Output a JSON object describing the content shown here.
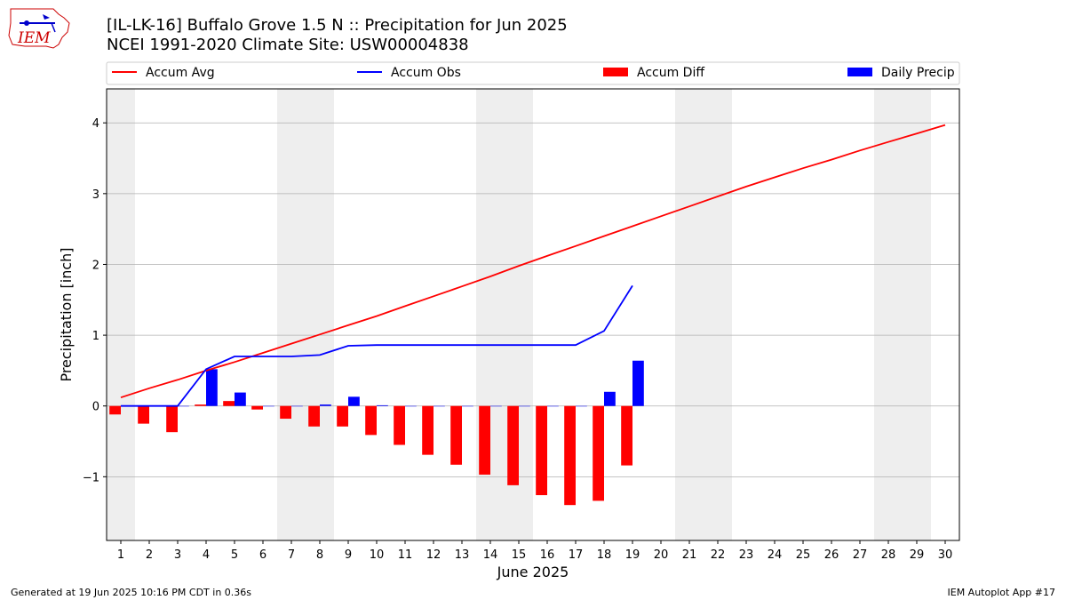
{
  "header": {
    "title_line1": "[IL-LK-16] Buffalo Grove 1.5 N :: Precipitation for Jun 2025",
    "title_line2": "NCEI 1991-2020 Climate Site: USW00004838"
  },
  "logo": {
    "text": "IEM"
  },
  "footer": {
    "generated": "Generated at 19 Jun 2025 10:16 PM CDT in 0.36s",
    "app": "IEM Autoplot App #17"
  },
  "colors": {
    "accum_avg": "#ff0000",
    "accum_obs": "#0000ff",
    "accum_diff": "#ff0000",
    "daily_precip": "#0000ff",
    "weekend_shade": "#eeeeee",
    "grid": "#b0b0b0"
  },
  "chart_data": {
    "type": "bar",
    "xlabel": "June 2025",
    "ylabel": "Precipitation [inch]",
    "xlim": [
      0.5,
      30.5
    ],
    "ylim": [
      -1.9,
      4.48
    ],
    "yticks": [
      -1,
      0,
      1,
      2,
      3,
      4
    ],
    "ytick_labels": [
      "−1",
      "0",
      "1",
      "2",
      "3",
      "4"
    ],
    "days": [
      1,
      2,
      3,
      4,
      5,
      6,
      7,
      8,
      9,
      10,
      11,
      12,
      13,
      14,
      15,
      16,
      17,
      18,
      19,
      20,
      21,
      22,
      23,
      24,
      25,
      26,
      27,
      28,
      29,
      30
    ],
    "weekend_ranges": [
      [
        0.5,
        1.5
      ],
      [
        6.5,
        8.5
      ],
      [
        13.5,
        15.5
      ],
      [
        20.5,
        22.5
      ],
      [
        27.5,
        29.5
      ]
    ],
    "grid": true,
    "legend_position": "top",
    "legend": [
      "Accum Avg",
      "Accum Obs",
      "Accum Diff",
      "Daily Precip"
    ],
    "series": [
      {
        "name": "Accum Avg",
        "kind": "line",
        "values": [
          0.12,
          0.25,
          0.37,
          0.5,
          0.62,
          0.75,
          0.88,
          1.01,
          1.14,
          1.27,
          1.41,
          1.55,
          1.69,
          1.83,
          1.98,
          2.12,
          2.26,
          2.4,
          2.54,
          2.68,
          2.82,
          2.96,
          3.1,
          3.23,
          3.36,
          3.48,
          3.61,
          3.73,
          3.85,
          3.97
        ]
      },
      {
        "name": "Accum Obs",
        "kind": "line",
        "values": [
          0.0,
          0.0,
          0.0,
          0.52,
          0.7,
          0.7,
          0.7,
          0.72,
          0.85,
          0.86,
          0.86,
          0.86,
          0.86,
          0.86,
          0.86,
          0.86,
          0.86,
          1.06,
          1.7
        ]
      },
      {
        "name": "Accum Diff",
        "kind": "bar",
        "values": [
          -0.12,
          -0.25,
          -0.37,
          0.02,
          0.07,
          -0.05,
          -0.18,
          -0.29,
          -0.29,
          -0.41,
          -0.55,
          -0.69,
          -0.83,
          -0.97,
          -1.12,
          -1.26,
          -1.4,
          -1.34,
          -0.84
        ]
      },
      {
        "name": "Daily Precip",
        "kind": "bar",
        "values": [
          0.0,
          0.0,
          0.0,
          0.52,
          0.19,
          0.0,
          0.0,
          0.02,
          0.13,
          0.01,
          0.0,
          0.0,
          0.0,
          0.0,
          0.0,
          0.0,
          0.0,
          0.2,
          0.64
        ]
      }
    ]
  }
}
